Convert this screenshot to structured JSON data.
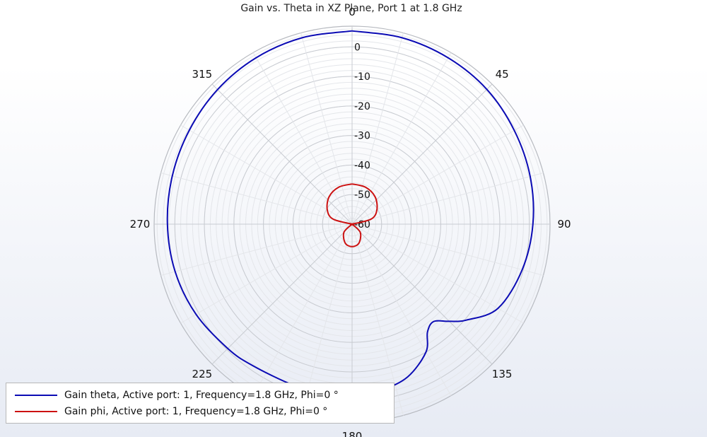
{
  "chart_data": {
    "type": "line",
    "subtype": "polar",
    "title": "Gain vs. Theta in XZ Plane,  Port 1 at 1.8 GHz",
    "angle_ticks": [
      0,
      45,
      90,
      135,
      180,
      225,
      270,
      315
    ],
    "radial_ticks": [
      0,
      -10,
      -20,
      -30,
      -40,
      -50,
      -60
    ],
    "rlim": [
      -60,
      7
    ],
    "angle_direction": "clockwise",
    "zero_position": "top",
    "grid": true,
    "legend_position": "bottom-left",
    "series": [
      {
        "name": "Gain theta, Active port: 1, Frequency=1.8 GHz, Phi=0 °",
        "color": "#0b0bb4",
        "points": [
          [
            0,
            5.4
          ],
          [
            15,
            5.3
          ],
          [
            30,
            5.0
          ],
          [
            45,
            4.5
          ],
          [
            60,
            3.4
          ],
          [
            75,
            2.4
          ],
          [
            90,
            1.2
          ],
          [
            105,
            -0.4
          ],
          [
            120,
            -3.0
          ],
          [
            130,
            -9.5
          ],
          [
            135,
            -13.5
          ],
          [
            140,
            -17.0
          ],
          [
            145,
            -15.5
          ],
          [
            150,
            -10.0
          ],
          [
            160,
            -5.0
          ],
          [
            170,
            -3.0
          ],
          [
            180,
            -2.3
          ],
          [
            190,
            -2.2
          ],
          [
            200,
            -2.0
          ],
          [
            215,
            -1.5
          ],
          [
            225,
            -0.5
          ],
          [
            240,
            1.0
          ],
          [
            255,
            2.0
          ],
          [
            270,
            2.5
          ],
          [
            285,
            3.0
          ],
          [
            300,
            3.6
          ],
          [
            315,
            4.4
          ],
          [
            330,
            5.0
          ],
          [
            345,
            5.3
          ],
          [
            360,
            5.4
          ]
        ]
      },
      {
        "name": "Gain phi,  Active port: 1, Frequency=1.8 GHz, Phi=0 °",
        "color": "#cc1111",
        "points": [
          [
            0,
            -46.4
          ],
          [
            20,
            -46.7
          ],
          [
            40,
            -47.9
          ],
          [
            60,
            -50.3
          ],
          [
            75,
            -53.3
          ],
          [
            90,
            -60
          ],
          [
            105,
            -60
          ],
          [
            135,
            -56.1
          ],
          [
            160,
            -53.2
          ],
          [
            180,
            -52.4
          ],
          [
            200,
            -53.2
          ],
          [
            225,
            -56.1
          ],
          [
            255,
            -60
          ],
          [
            270,
            -60
          ],
          [
            285,
            -53.3
          ],
          [
            300,
            -50.3
          ],
          [
            320,
            -47.9
          ],
          [
            340,
            -46.7
          ],
          [
            360,
            -46.4
          ]
        ]
      }
    ]
  }
}
